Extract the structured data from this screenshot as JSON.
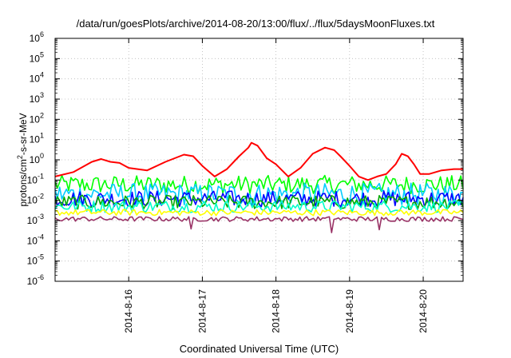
{
  "chart_data": {
    "type": "line",
    "title": "/data/run/goesPlots/archive/2014-08-20/13:00/flux/../flux/5daysMoonFluxes.txt",
    "xlabel": "Coordinated Universal Time (UTC)",
    "ylabel": "protons/cm2-s-sr-MeV",
    "ylabel_parts": {
      "pre": "protons/cm",
      "sup": "2",
      "post": "-s-sr-MeV"
    },
    "yscale": "log",
    "ylim": [
      1e-06,
      1000000.0
    ],
    "ytick_labels": [
      {
        "base": "10",
        "exp": "-6"
      },
      {
        "base": "10",
        "exp": "-5"
      },
      {
        "base": "10",
        "exp": "-4"
      },
      {
        "base": "10",
        "exp": "-3"
      },
      {
        "base": "10",
        "exp": "-2"
      },
      {
        "base": "10",
        "exp": "-1"
      },
      {
        "base": "10",
        "exp": "0"
      },
      {
        "base": "10",
        "exp": "1"
      },
      {
        "base": "10",
        "exp": "2"
      },
      {
        "base": "10",
        "exp": "3"
      },
      {
        "base": "10",
        "exp": "4"
      },
      {
        "base": "10",
        "exp": "5"
      },
      {
        "base": "10",
        "exp": "6"
      }
    ],
    "xlim": [
      "2014-08-15 00:00",
      "2014-08-20 13:00"
    ],
    "xticks": [
      "2014-8-16",
      "2014-8-17",
      "2014-8-18",
      "2014-8-19",
      "2014-8-20"
    ],
    "grid": true,
    "series": [
      {
        "color": "#ff0000",
        "x": [
          "2014-08-15 00:00",
          "2014-08-15 06:00",
          "2014-08-15 12:00",
          "2014-08-15 15:00",
          "2014-08-15 18:00",
          "2014-08-15 21:00",
          "2014-08-16 00:00",
          "2014-08-16 06:00",
          "2014-08-16 12:00",
          "2014-08-16 18:00",
          "2014-08-16 21:00",
          "2014-08-17 00:00",
          "2014-08-17 04:00",
          "2014-08-17 08:00",
          "2014-08-17 12:00",
          "2014-08-17 15:00",
          "2014-08-17 16:00",
          "2014-08-17 18:00",
          "2014-08-17 21:00",
          "2014-08-18 00:00",
          "2014-08-18 04:00",
          "2014-08-18 08:00",
          "2014-08-18 12:00",
          "2014-08-18 16:00",
          "2014-08-18 19:00",
          "2014-08-18 21:00",
          "2014-08-19 00:00",
          "2014-08-19 03:00",
          "2014-08-19 06:00",
          "2014-08-19 09:00",
          "2014-08-19 12:00",
          "2014-08-19 15:00",
          "2014-08-19 17:00",
          "2014-08-19 19:00",
          "2014-08-19 21:00",
          "2014-08-19 23:00",
          "2014-08-20 02:00",
          "2014-08-20 06:00",
          "2014-08-20 10:00",
          "2014-08-20 13:00"
        ],
        "y": [
          0.15,
          0.25,
          0.8,
          1.1,
          0.8,
          0.7,
          0.4,
          0.3,
          0.8,
          1.8,
          1.5,
          0.5,
          0.15,
          0.35,
          1.5,
          4,
          7,
          5,
          1.2,
          0.6,
          0.15,
          0.4,
          2,
          4,
          3,
          1.5,
          0.5,
          0.15,
          0.1,
          0.15,
          0.2,
          0.6,
          2,
          1.5,
          0.6,
          0.2,
          0.2,
          0.3,
          0.35,
          0.35
        ]
      },
      {
        "color": "#00ff00",
        "y_level": 0.06,
        "y_spread": 0.45
      },
      {
        "color": "#00ccff",
        "y_level": 0.02,
        "y_spread": 0.55
      },
      {
        "color": "#0000ff",
        "y_level": 0.012,
        "y_spread": 0.4
      },
      {
        "color": "#00aa00",
        "y_level": 0.008,
        "y_spread": 0.35
      },
      {
        "color": "#00ffcc",
        "y_level": 0.005,
        "y_spread": 0.3
      },
      {
        "color": "#ffff00",
        "y_level": 0.0025,
        "y_spread": 0.15
      },
      {
        "color": "#993366",
        "y_level": 0.0012,
        "y_spread": 0.12
      }
    ]
  }
}
